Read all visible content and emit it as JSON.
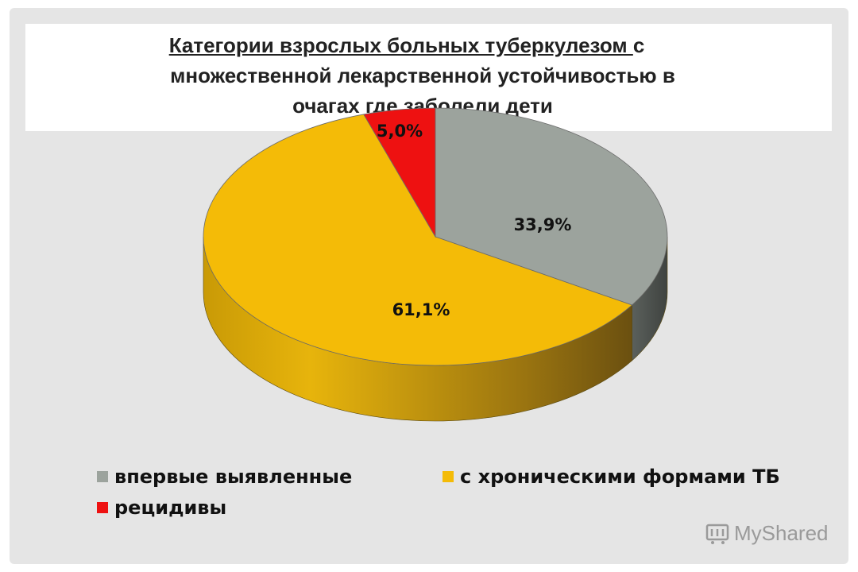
{
  "title": {
    "line1_underlined": "Категории взрослых больных туберкулезом ",
    "line1_rest": "с",
    "line2": "множественной лекарственной устойчивостью в",
    "line3": "очагах где заболели дети"
  },
  "chart_data": {
    "type": "pie",
    "style": "3d",
    "categories": [
      "впервые выявленные",
      "с хроническими формами ТБ",
      "рецидивы"
    ],
    "values": [
      33.9,
      61.1,
      5.0
    ],
    "data_labels": [
      "33,9%",
      "61,1%",
      "5,0%"
    ],
    "colors": [
      "#9ca39d",
      "#f4bb07",
      "#ee1111"
    ],
    "legend_position": "bottom"
  },
  "watermark": "MyShared"
}
